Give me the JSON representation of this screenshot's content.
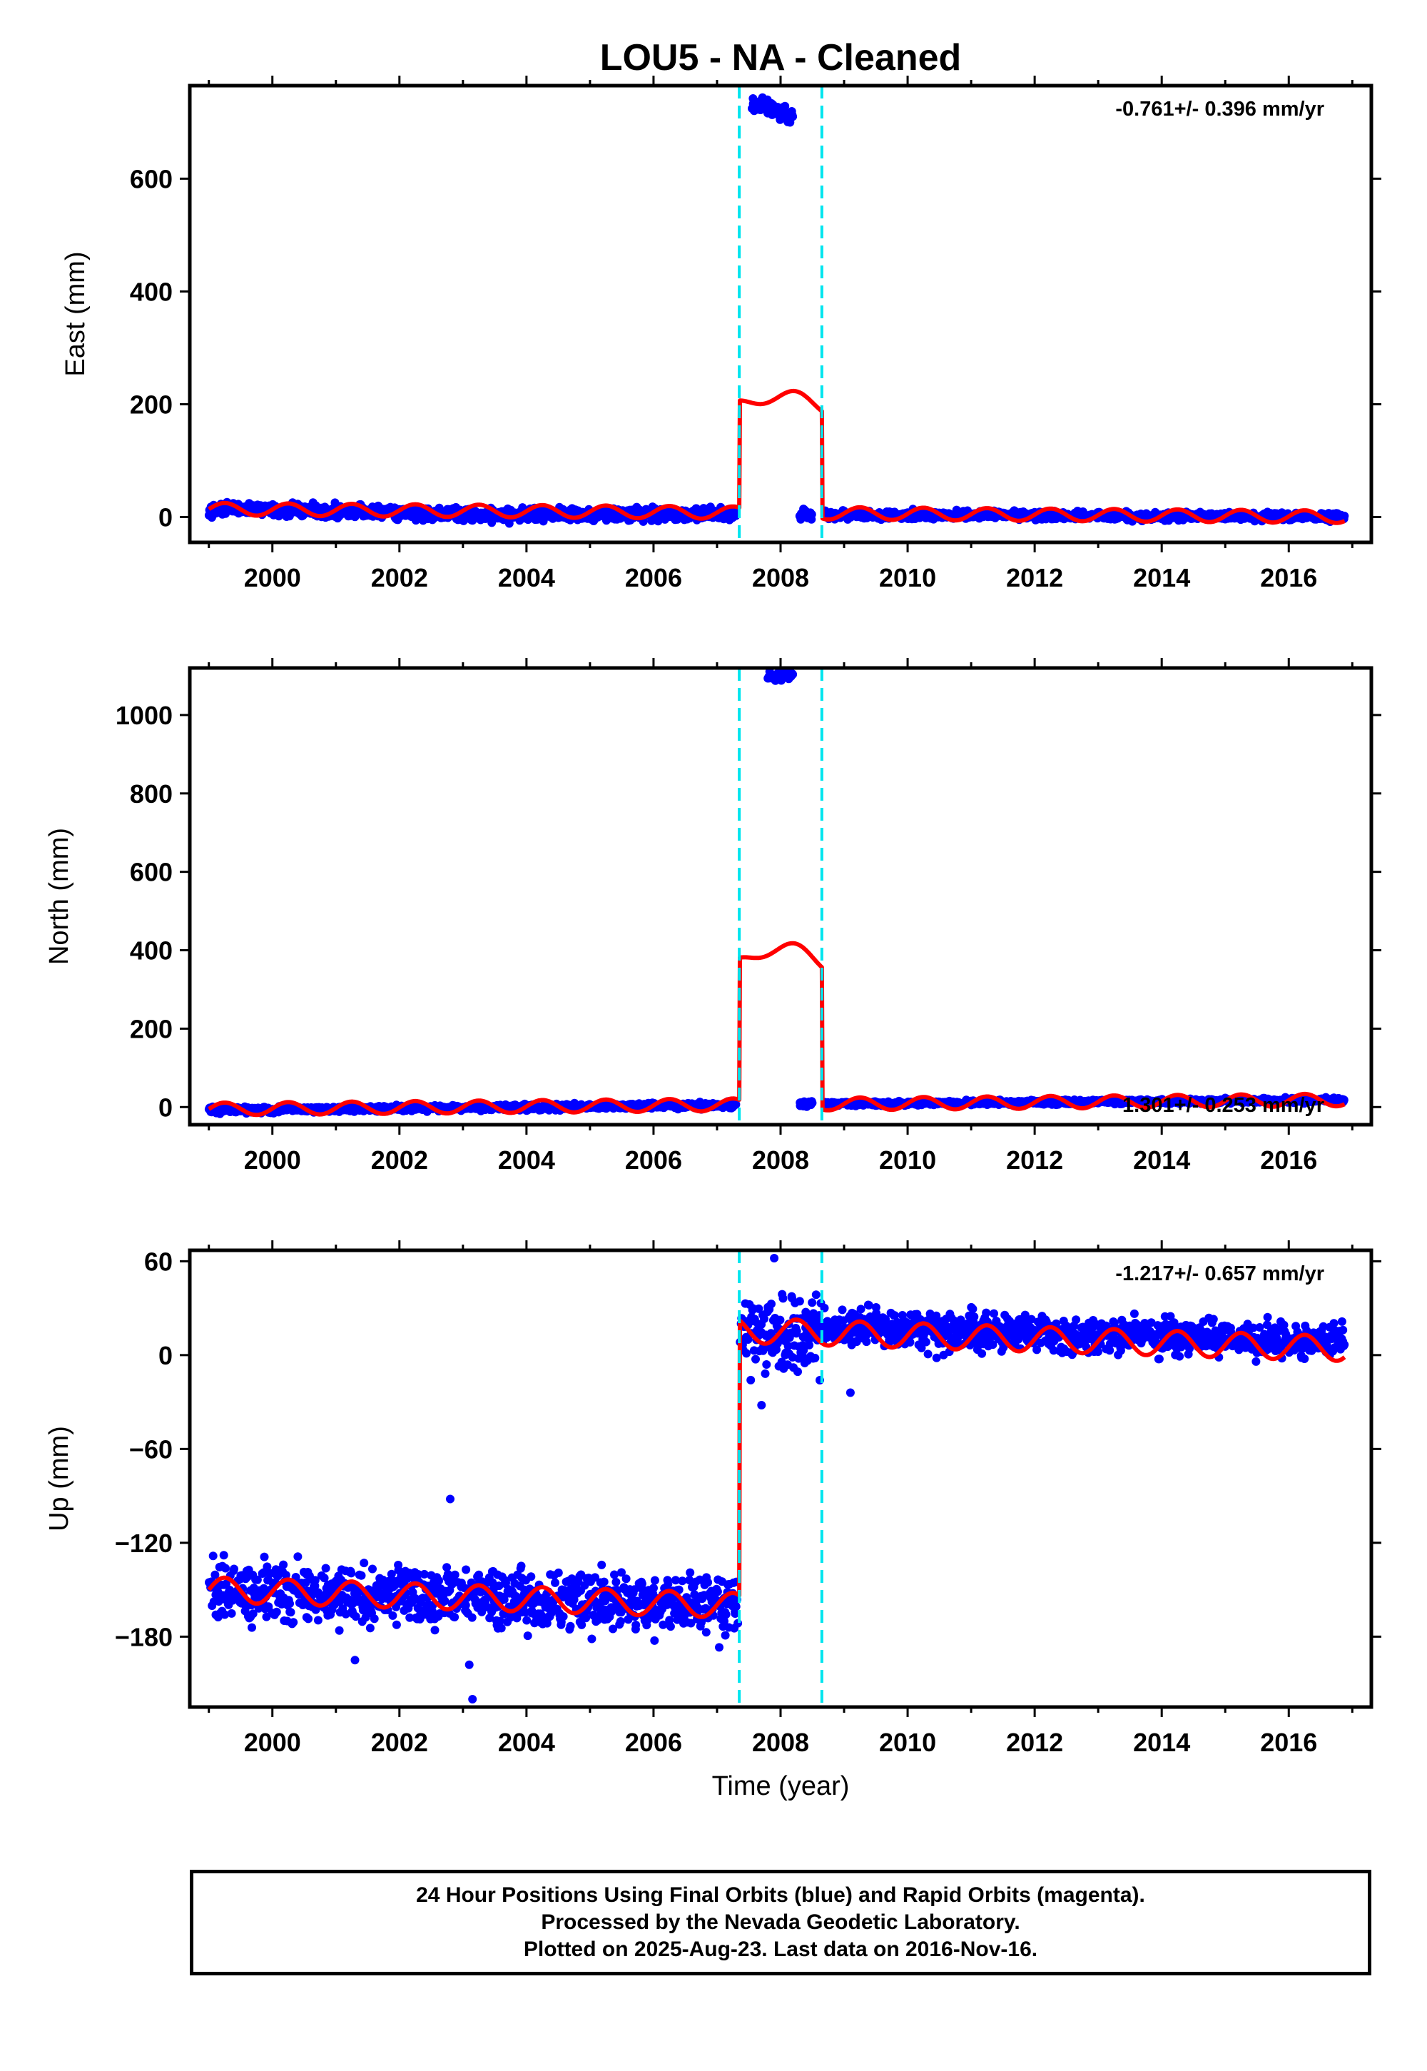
{
  "figure": {
    "title": "LOU5  - NA - Cleaned",
    "x_axis_label": "Time (year)",
    "colors": {
      "data_points": "#0000ff",
      "model_line": "#ff0000",
      "step_markers": "#00e5ee",
      "frame": "#000000"
    },
    "footer": {
      "line1": "24 Hour Positions Using Final Orbits (blue) and Rapid Orbits (magenta).",
      "line2": "Processed by the Nevada Geodetic Laboratory.",
      "line3": "Plotted on 2025-Aug-23. Last data on 2016-Nov-16."
    }
  },
  "chart_data": [
    {
      "type": "scatter",
      "component": "East",
      "ylabel": "East (mm)",
      "rate_annotation": "-0.761+/- 0.396 mm/yr",
      "xlim": [
        1998.7,
        2017.3
      ],
      "ylim": [
        -45,
        765
      ],
      "xticks": [
        2000,
        2002,
        2004,
        2006,
        2008,
        2010,
        2012,
        2014,
        2016
      ],
      "yticks": [
        0,
        200,
        400,
        600
      ],
      "step_markers": [
        2007.35,
        2008.65
      ],
      "data_range": [
        1999.0,
        2016.88
      ],
      "grid": false,
      "series": [
        {
          "style": "points",
          "segments": [
            {
              "x_start": 1999.0,
              "x_end": 2000.0,
              "y_start": 15,
              "y_end": 13,
              "spread": 7
            },
            {
              "x_start": 2000.0,
              "x_end": 2003.0,
              "y_start": 13,
              "y_end": 4,
              "spread": 8
            },
            {
              "x_start": 2003.0,
              "x_end": 2007.3,
              "y_start": 4,
              "y_end": 6,
              "spread": 8
            },
            {
              "x_start": 2007.55,
              "x_end": 2007.85,
              "y_start": 735,
              "y_end": 728,
              "spread": 10
            },
            {
              "x_start": 2007.85,
              "x_end": 2008.2,
              "y_start": 728,
              "y_end": 705,
              "spread": 10
            },
            {
              "x_start": 2008.3,
              "x_end": 2008.5,
              "y_start": 3,
              "y_end": 3,
              "spread": 6
            },
            {
              "x_start": 2008.7,
              "x_end": 2016.88,
              "y_start": 4,
              "y_end": 0,
              "spread": 5
            }
          ]
        },
        {
          "style": "line",
          "model": {
            "offset": 14,
            "rate": -0.761,
            "annual_amplitude": 11,
            "ref_year": 1999.0,
            "step": {
              "from": 2007.35,
              "to": 2008.65,
              "level": 190,
              "bump": 18
            }
          }
        }
      ]
    },
    {
      "type": "scatter",
      "component": "North",
      "ylabel": "North (mm)",
      "rate_annotation": "1.301+/- 0.253 mm/yr",
      "xlim": [
        1998.7,
        2017.3
      ],
      "ylim": [
        -45,
        1120
      ],
      "xticks": [
        2000,
        2002,
        2004,
        2006,
        2008,
        2010,
        2012,
        2014,
        2016
      ],
      "yticks": [
        0,
        200,
        400,
        600,
        800,
        1000
      ],
      "step_markers": [
        2007.35,
        2008.65
      ],
      "data_range": [
        1999.0,
        2016.88
      ],
      "grid": false,
      "series": [
        {
          "style": "points",
          "segments": [
            {
              "x_start": 1999.0,
              "x_end": 2007.3,
              "y_start": -8,
              "y_end": 5,
              "spread": 5
            },
            {
              "x_start": 2007.8,
              "x_end": 2008.2,
              "y_start": 1098,
              "y_end": 1104,
              "spread": 8
            },
            {
              "x_start": 2008.3,
              "x_end": 2008.5,
              "y_start": 8,
              "y_end": 10,
              "spread": 5
            },
            {
              "x_start": 2008.7,
              "x_end": 2016.88,
              "y_start": 8,
              "y_end": 18,
              "spread": 4
            }
          ]
        },
        {
          "style": "line",
          "model": {
            "offset": -5,
            "rate": 1.301,
            "annual_amplitude": 16,
            "ref_year": 1999.0,
            "step": {
              "from": 2007.35,
              "to": 2008.65,
              "level": 362,
              "bump": 38
            }
          }
        }
      ]
    },
    {
      "type": "scatter",
      "component": "Up",
      "ylabel": "Up (mm)",
      "rate_annotation": "-1.217+/- 0.657 mm/yr",
      "xlim": [
        1998.7,
        2017.3
      ],
      "ylim": [
        -225,
        67
      ],
      "xticks": [
        2000,
        2002,
        2004,
        2006,
        2008,
        2010,
        2012,
        2014,
        2016
      ],
      "yticks": [
        60,
        0,
        -60,
        -120,
        -180
      ],
      "step_markers": [
        2007.35,
        2008.65
      ],
      "data_range": [
        1999.0,
        2016.88
      ],
      "grid": false,
      "series": [
        {
          "style": "points",
          "segments": [
            {
              "x_start": 1999.0,
              "x_end": 2007.33,
              "y_start": -150,
              "y_end": -160,
              "spread": 13
            },
            {
              "x_start": 2007.36,
              "x_end": 2008.65,
              "y_start": 15,
              "y_end": 15,
              "spread": 18
            },
            {
              "x_start": 2008.65,
              "x_end": 2016.88,
              "y_start": 18,
              "y_end": 8,
              "spread": 8
            }
          ],
          "outliers": [
            {
              "x": 2002.8,
              "y": -92
            },
            {
              "x": 2003.1,
              "y": -198
            },
            {
              "x": 2003.15,
              "y": -220
            },
            {
              "x": 2001.3,
              "y": -195
            },
            {
              "x": 2007.9,
              "y": 62
            },
            {
              "x": 2007.7,
              "y": -32
            },
            {
              "x": 2009.1,
              "y": -24
            }
          ]
        },
        {
          "style": "line",
          "model": {
            "offset": -150,
            "rate": -1.217,
            "annual_amplitude": 8,
            "ref_year": 1999.0,
            "step_after": {
              "at": 2007.35,
              "offset": 15,
              "rate": -1.217,
              "ref_year": 2008.0
            }
          }
        }
      ]
    }
  ]
}
